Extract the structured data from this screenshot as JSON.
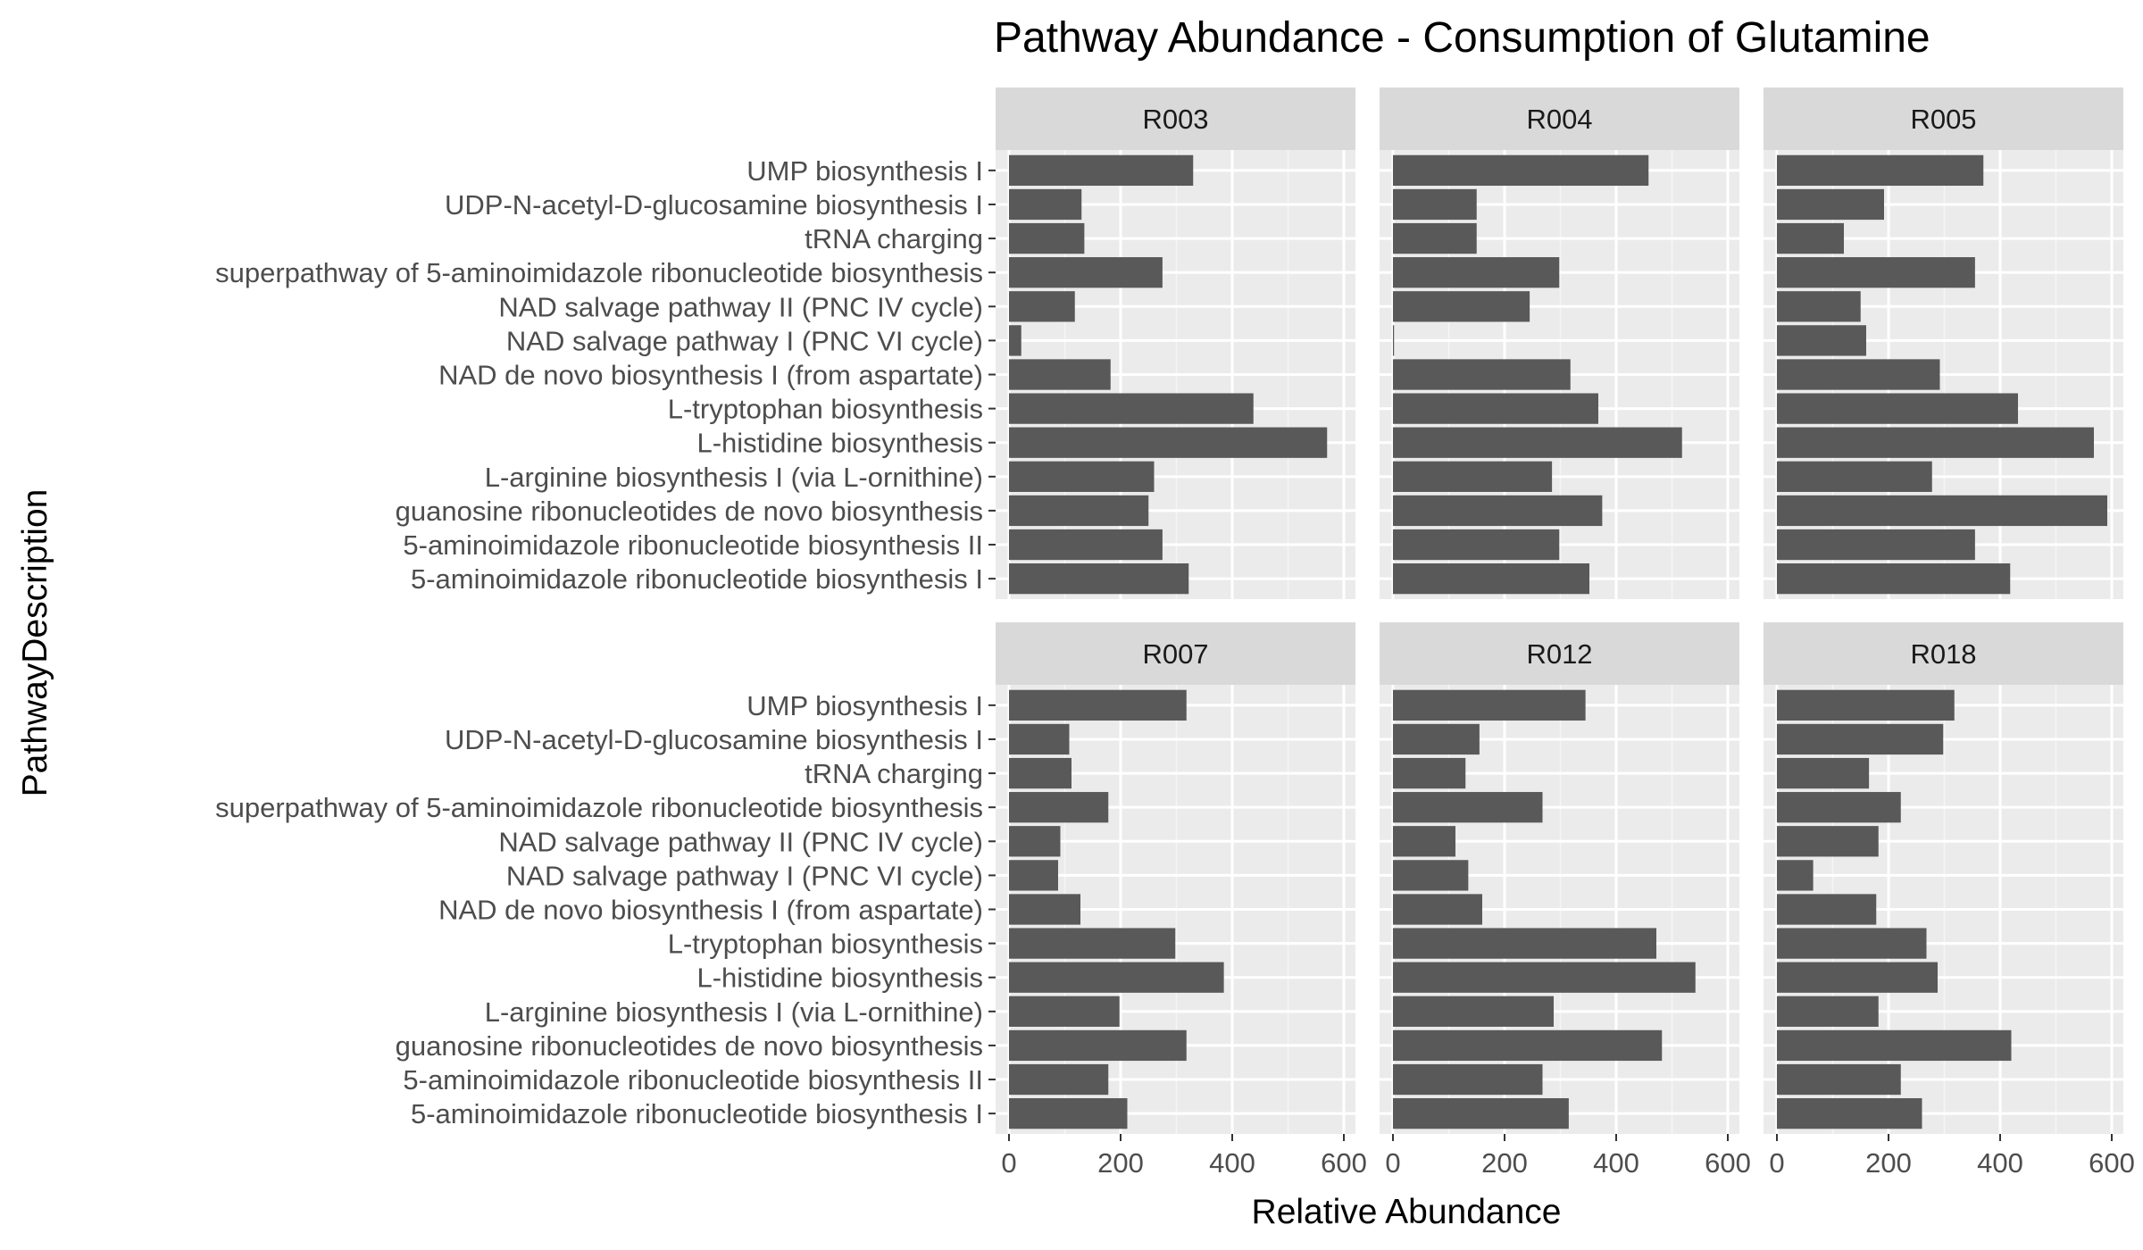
{
  "chart_data": {
    "type": "bar",
    "orientation": "horizontal",
    "title": "Pathway Abundance - Consumption of Glutamine",
    "xlabel": "Relative Abundance",
    "ylabel": "PathwayDescription",
    "xlim": [
      0,
      600
    ],
    "xticks": [
      "0",
      "200",
      "400",
      "600"
    ],
    "grid": true,
    "categories": [
      "UMP biosynthesis I",
      "UDP-N-acetyl-D-glucosamine biosynthesis I",
      "tRNA charging",
      "superpathway of 5-aminoimidazole ribonucleotide biosynthesis",
      "NAD salvage pathway II (PNC IV cycle)",
      "NAD salvage pathway I (PNC VI cycle)",
      "NAD de novo biosynthesis I (from aspartate)",
      "L-tryptophan biosynthesis",
      "L-histidine biosynthesis",
      "L-arginine biosynthesis I (via L-ornithine)",
      "guanosine ribonucleotides de novo biosynthesis",
      "5-aminoimidazole ribonucleotide biosynthesis II",
      "5-aminoimidazole ribonucleotide biosynthesis I"
    ],
    "facets": [
      {
        "name": "R003",
        "values": [
          330,
          130,
          135,
          275,
          118,
          22,
          182,
          438,
          570,
          260,
          250,
          275,
          322
        ]
      },
      {
        "name": "R004",
        "values": [
          458,
          150,
          150,
          298,
          245,
          2,
          318,
          368,
          518,
          285,
          375,
          298,
          352
        ]
      },
      {
        "name": "R005",
        "values": [
          370,
          192,
          120,
          355,
          150,
          160,
          292,
          432,
          568,
          278,
          592,
          355,
          418
        ]
      },
      {
        "name": "R007",
        "values": [
          318,
          108,
          112,
          178,
          92,
          88,
          128,
          298,
          385,
          198,
          318,
          178,
          212
        ]
      },
      {
        "name": "R012",
        "values": [
          345,
          155,
          130,
          268,
          112,
          135,
          160,
          472,
          542,
          288,
          482,
          268,
          315
        ]
      },
      {
        "name": "R018",
        "values": [
          318,
          298,
          165,
          222,
          182,
          65,
          178,
          268,
          288,
          182,
          420,
          222,
          260
        ]
      }
    ]
  }
}
